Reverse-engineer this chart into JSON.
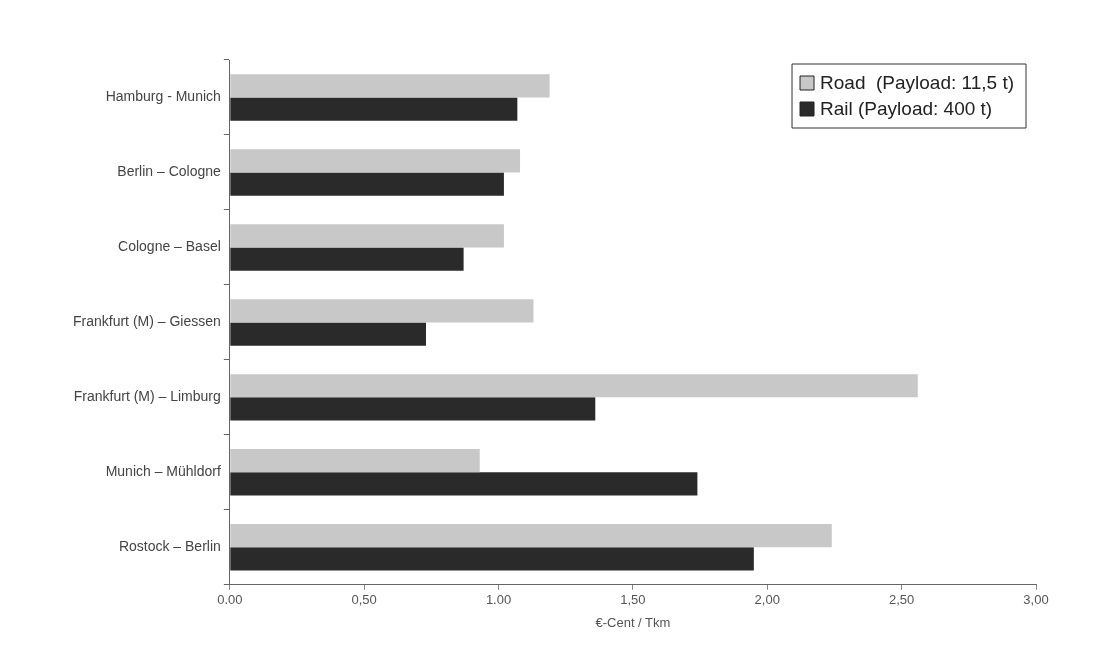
{
  "chart_data": {
    "type": "bar",
    "orientation": "horizontal",
    "xlabel": "€-Cent / Tkm",
    "categories": [
      "Hamburg - Munich",
      "Berlin – Cologne",
      "Cologne – Basel",
      "Frankfurt (M) – Giessen",
      "Frankfurt (M) – Limburg",
      "Munich – Mühldorf",
      "Rostock – Berlin"
    ],
    "series": [
      {
        "name": "Road  (Payload: 11,5 t)",
        "color": "#c8c8c8",
        "values": [
          1.19,
          1.08,
          1.02,
          1.13,
          2.56,
          0.93,
          2.24
        ]
      },
      {
        "name": "Rail (Payload: 400 t)",
        "color": "#2a2a2a",
        "values": [
          1.07,
          1.02,
          0.87,
          0.73,
          1.36,
          1.74,
          1.95
        ]
      }
    ],
    "xlim": [
      0,
      3
    ],
    "xticks": [
      {
        "value": 0,
        "label": "0.00"
      },
      {
        "value": 0.5,
        "label": "0,50"
      },
      {
        "value": 1,
        "label": "1.00"
      },
      {
        "value": 1.5,
        "label": "1,50"
      },
      {
        "value": 2,
        "label": "2,00"
      },
      {
        "value": 2.5,
        "label": "2,50"
      },
      {
        "value": 3,
        "label": "3,00"
      }
    ],
    "grid": false,
    "legend": "top right"
  }
}
